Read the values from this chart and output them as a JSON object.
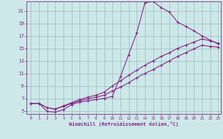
{
  "xlabel": "Windchill (Refroidissement éolien,°C)",
  "bg_color": "#cce8e8",
  "line_color": "#882288",
  "grid_color": "#99bbbb",
  "x_min": -0.5,
  "x_max": 23.3,
  "y_min": 4.5,
  "y_max": 22.5,
  "yticks": [
    5,
    7,
    9,
    11,
    13,
    15,
    17,
    19,
    21
  ],
  "xticks": [
    0,
    1,
    2,
    3,
    4,
    5,
    6,
    7,
    8,
    9,
    10,
    11,
    12,
    13,
    14,
    15,
    16,
    17,
    18,
    19,
    20,
    21,
    22,
    23
  ],
  "line1_x": [
    0,
    1,
    2,
    3,
    4,
    5,
    6,
    7,
    8,
    9,
    10,
    11,
    12,
    13,
    14,
    15,
    16,
    17,
    18,
    19,
    20,
    21,
    22,
    23
  ],
  "line1_y": [
    6.2,
    6.2,
    4.9,
    4.8,
    5.2,
    6.0,
    6.4,
    6.6,
    6.8,
    7.0,
    7.3,
    10.5,
    14.0,
    17.5,
    22.3,
    22.5,
    21.5,
    20.8,
    19.2,
    18.5,
    17.8,
    17.0,
    16.3,
    15.7
  ],
  "line2_x": [
    0,
    1,
    2,
    3,
    4,
    5,
    6,
    7,
    8,
    9,
    10,
    11,
    12,
    13,
    14,
    15,
    16,
    17,
    18,
    19,
    20,
    21,
    22,
    23
  ],
  "line2_y": [
    6.2,
    6.2,
    5.5,
    5.3,
    5.8,
    6.3,
    6.8,
    7.2,
    7.5,
    8.0,
    9.0,
    9.8,
    10.7,
    11.5,
    12.3,
    13.0,
    13.7,
    14.3,
    15.0,
    15.5,
    16.0,
    16.5,
    16.2,
    15.8
  ],
  "line3_x": [
    0,
    1,
    2,
    3,
    4,
    5,
    6,
    7,
    8,
    9,
    10,
    11,
    12,
    13,
    14,
    15,
    16,
    17,
    18,
    19,
    20,
    21,
    22,
    23
  ],
  "line3_y": [
    6.2,
    6.2,
    5.5,
    5.3,
    5.7,
    6.2,
    6.6,
    6.9,
    7.2,
    7.5,
    8.2,
    8.8,
    9.5,
    10.3,
    11.0,
    11.6,
    12.3,
    13.0,
    13.7,
    14.3,
    14.9,
    15.5,
    15.3,
    15.2
  ]
}
